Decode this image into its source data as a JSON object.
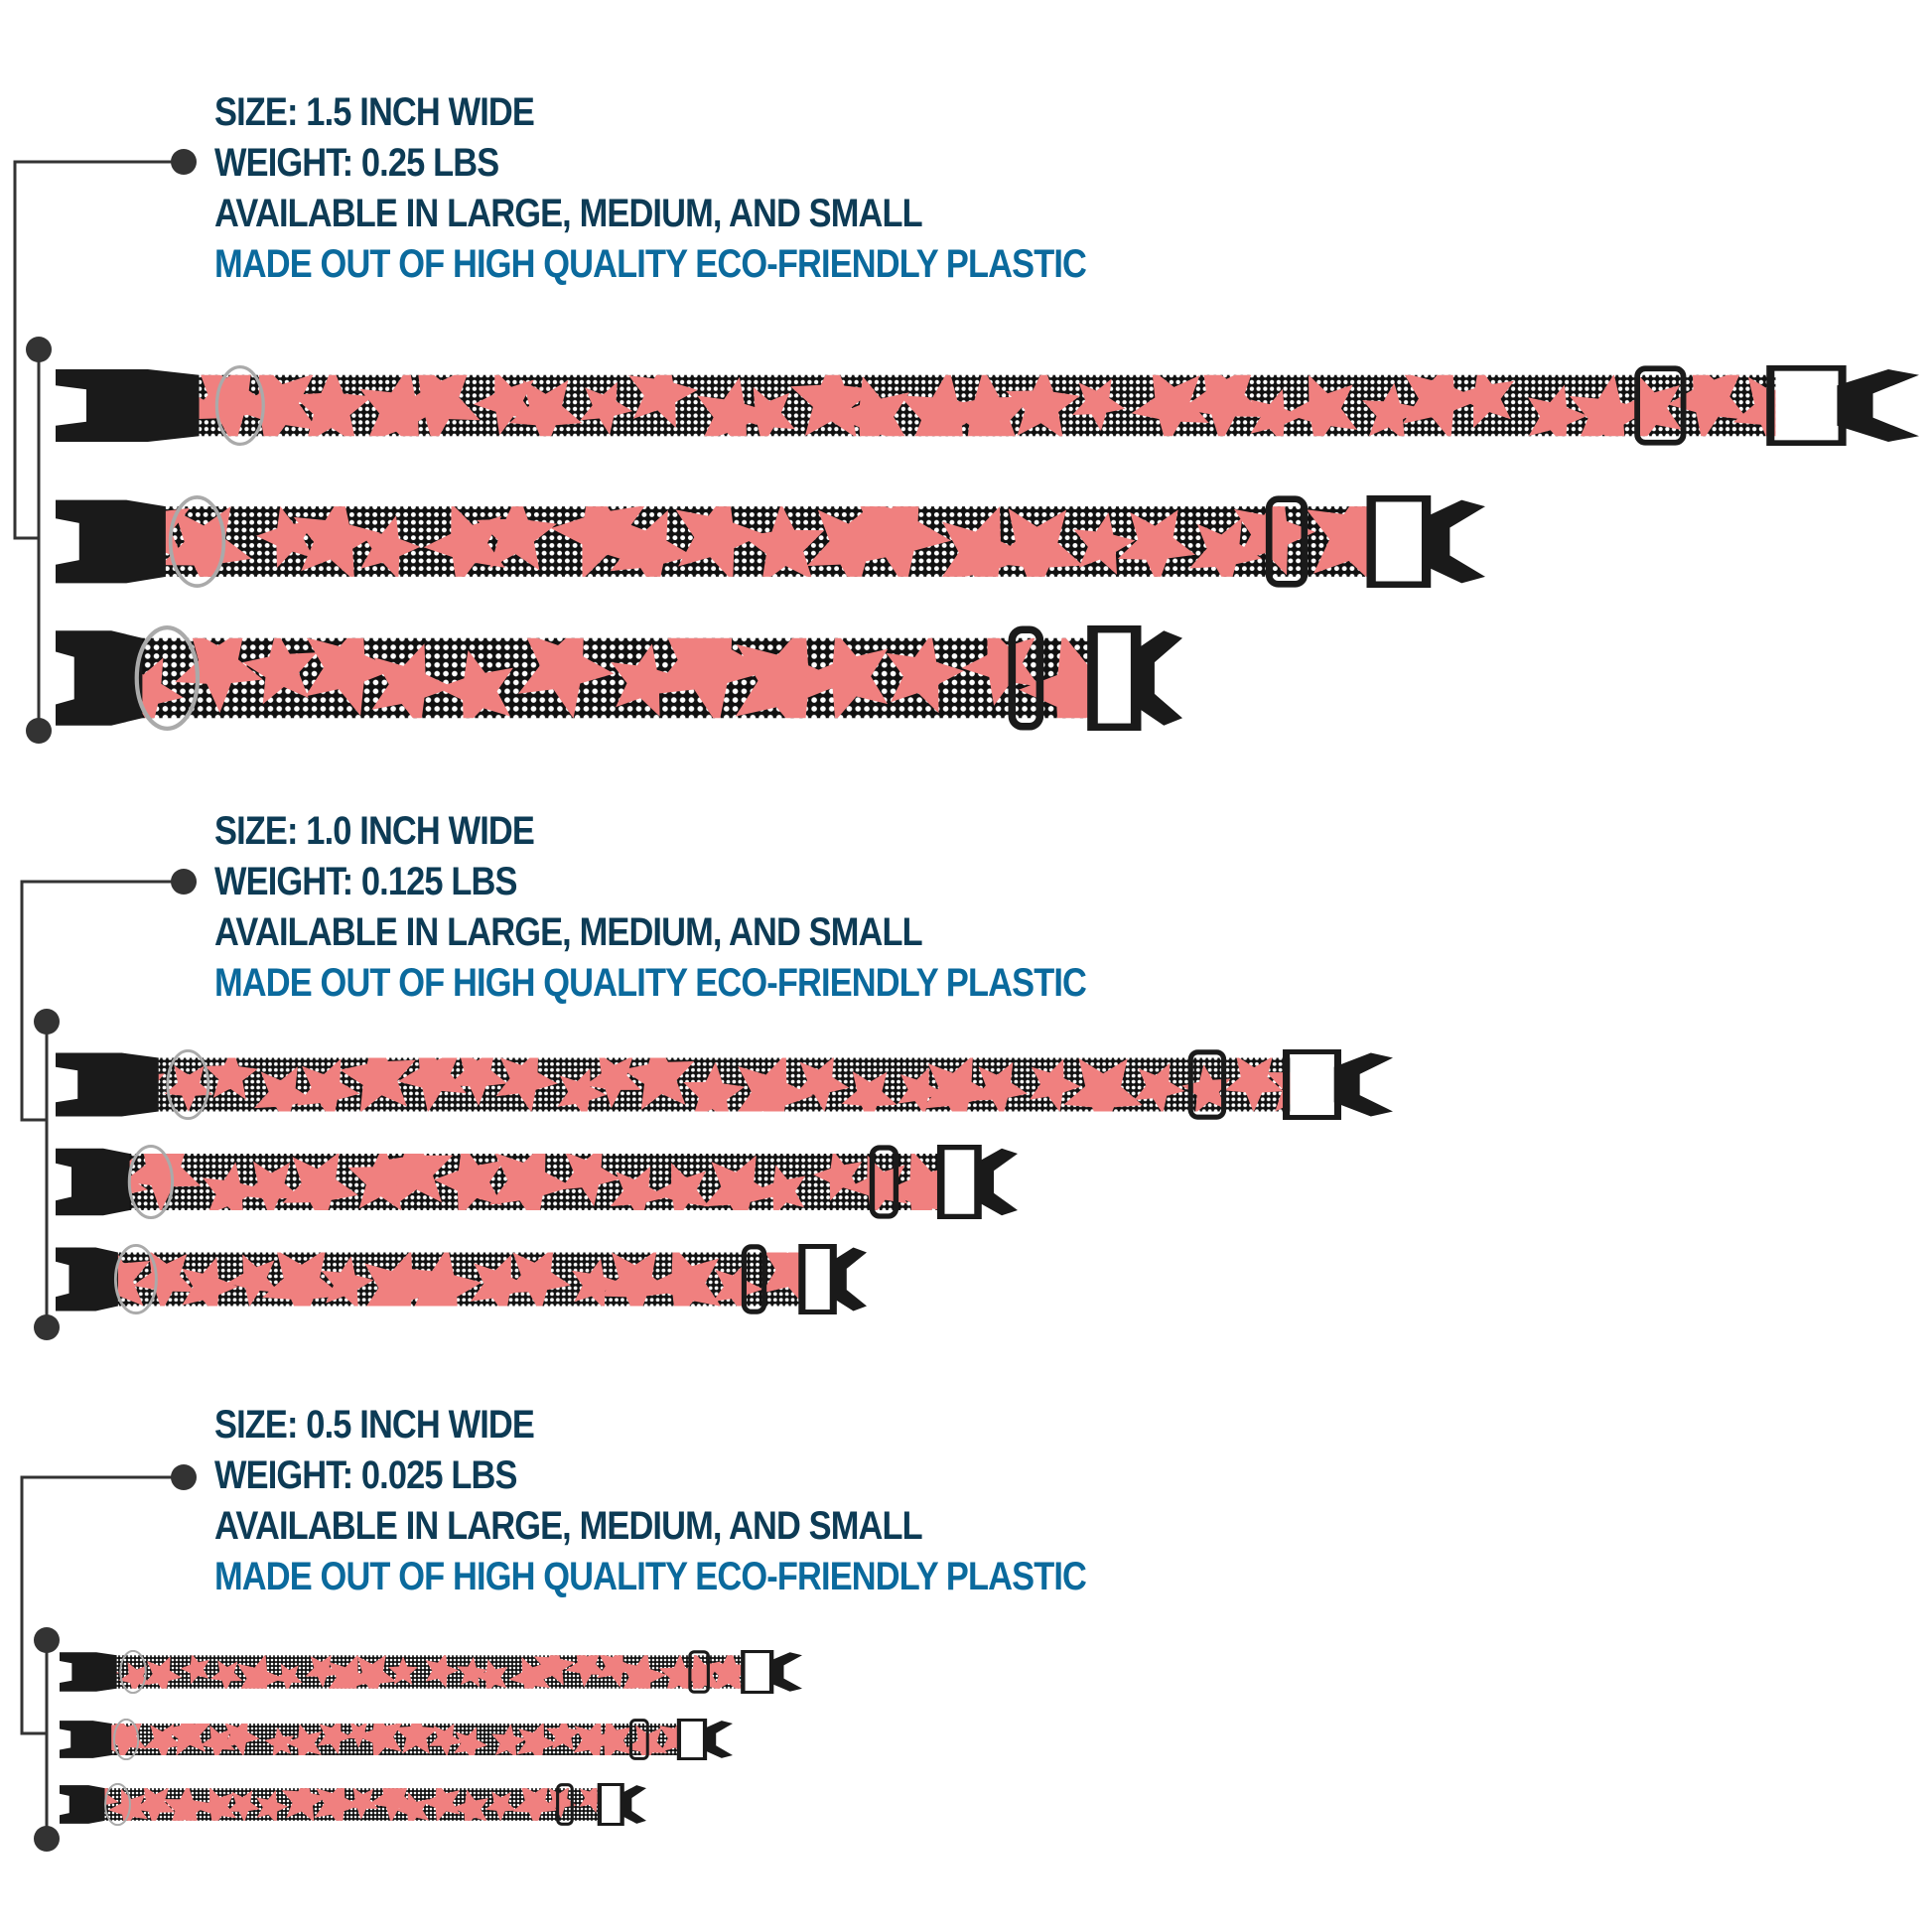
{
  "colors": {
    "heading": "#0d3b55",
    "accent": "#0b6a9d",
    "strap_pink": "#f0807f",
    "strap_dark": "#111111",
    "hardware": "#1a1a1a"
  },
  "sections": [
    {
      "size": "SIZE: 1.5 INCH WIDE",
      "weight": "WEIGHT: 0.25 LBS",
      "availability": "AVAILABLE IN LARGE, MEDIUM, AND SMALL",
      "material": "MADE OUT OF HIGH QUALITY ECO-FRIENDLY PLASTIC",
      "collars": [
        "large",
        "medium",
        "small"
      ]
    },
    {
      "size": "SIZE: 1.0 INCH WIDE",
      "weight": "WEIGHT: 0.125 LBS",
      "availability": "AVAILABLE IN LARGE, MEDIUM, AND SMALL",
      "material": "MADE OUT OF HIGH QUALITY ECO-FRIENDLY PLASTIC",
      "collars": [
        "large",
        "medium",
        "small"
      ]
    },
    {
      "size": "SIZE: 0.5 INCH WIDE",
      "weight": "WEIGHT: 0.025 LBS",
      "availability": "AVAILABLE IN LARGE, MEDIUM, AND SMALL",
      "material": "MADE OUT OF HIGH QUALITY ECO-FRIENDLY PLASTIC",
      "collars": [
        "large",
        "medium",
        "small"
      ]
    }
  ]
}
